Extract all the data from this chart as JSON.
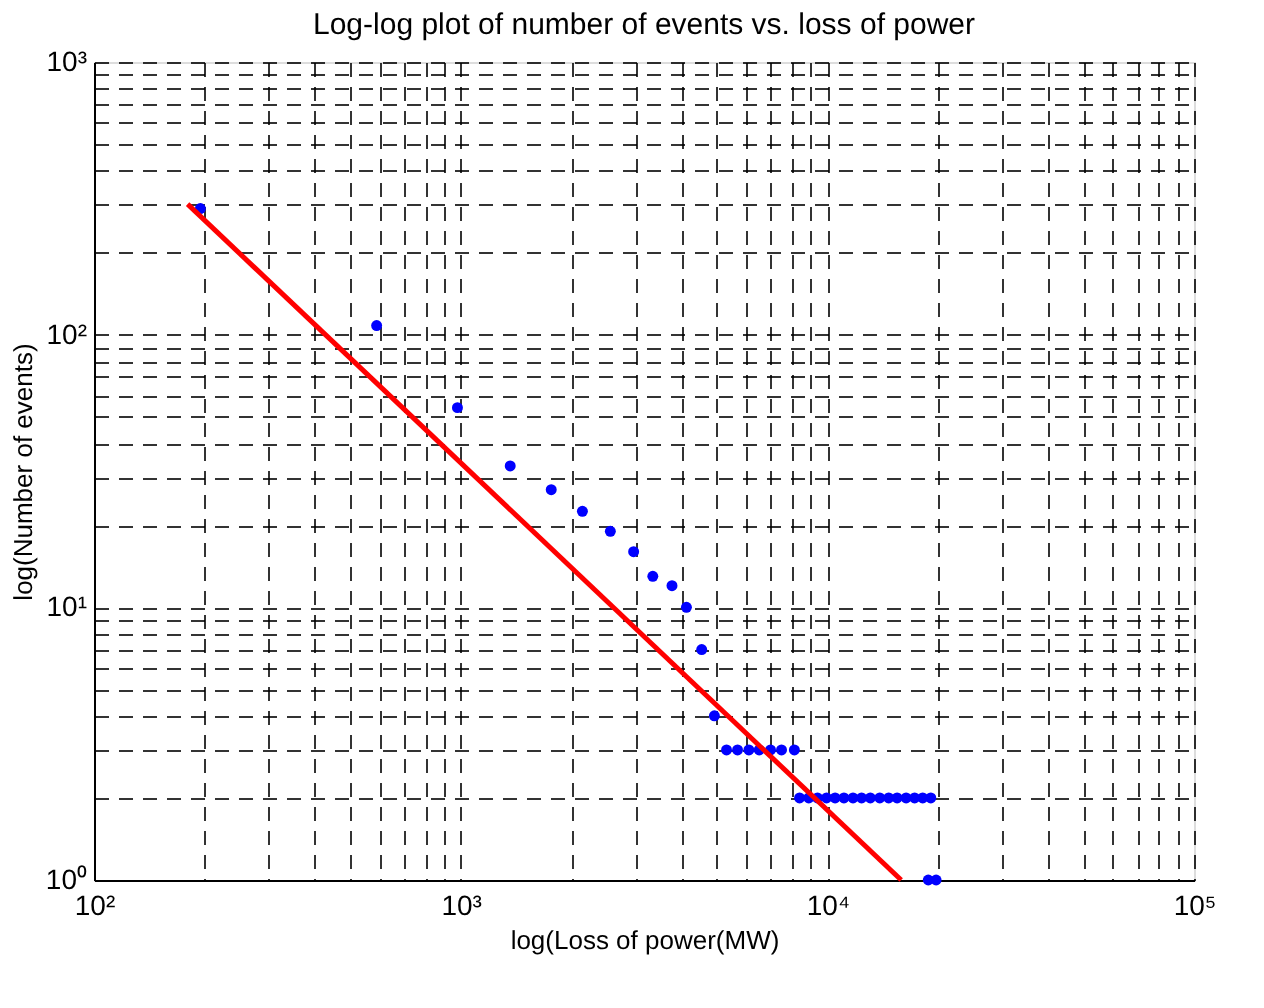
{
  "chart_data": {
    "type": "scatter",
    "title": "Log-log plot of number of events vs. loss of power",
    "xlabel": "log(Loss of power(MW)",
    "ylabel": "log(Number of events)",
    "log": "xy",
    "grid": true,
    "marker": "circle",
    "xlim": [
      100,
      100000
    ],
    "ylim": [
      1,
      1000
    ],
    "xticks": [
      {
        "value": 100,
        "label": "10²"
      },
      {
        "value": 200,
        "label": null
      },
      {
        "value": 300,
        "label": null
      },
      {
        "value": 400,
        "label": null
      },
      {
        "value": 500,
        "label": null
      },
      {
        "value": 600,
        "label": null
      },
      {
        "value": 700,
        "label": null
      },
      {
        "value": 800,
        "label": null
      },
      {
        "value": 900,
        "label": null
      },
      {
        "value": 1000,
        "label": "10³"
      },
      {
        "value": 2000,
        "label": null
      },
      {
        "value": 3000,
        "label": null
      },
      {
        "value": 4000,
        "label": null
      },
      {
        "value": 5000,
        "label": null
      },
      {
        "value": 6000,
        "label": null
      },
      {
        "value": 7000,
        "label": null
      },
      {
        "value": 8000,
        "label": null
      },
      {
        "value": 9000,
        "label": null
      },
      {
        "value": 10000,
        "label": "10⁴"
      },
      {
        "value": 20000,
        "label": null
      },
      {
        "value": 30000,
        "label": null
      },
      {
        "value": 40000,
        "label": null
      },
      {
        "value": 50000,
        "label": null
      },
      {
        "value": 60000,
        "label": null
      },
      {
        "value": 70000,
        "label": null
      },
      {
        "value": 80000,
        "label": null
      },
      {
        "value": 90000,
        "label": null
      },
      {
        "value": 100000,
        "label": "10⁵"
      }
    ],
    "yticks": [
      {
        "value": 1,
        "label": "10⁰"
      },
      {
        "value": 2,
        "label": null
      },
      {
        "value": 3,
        "label": null
      },
      {
        "value": 4,
        "label": null
      },
      {
        "value": 5,
        "label": null
      },
      {
        "value": 6,
        "label": null
      },
      {
        "value": 7,
        "label": null
      },
      {
        "value": 8,
        "label": null
      },
      {
        "value": 9,
        "label": null
      },
      {
        "value": 10,
        "label": "10¹"
      },
      {
        "value": 20,
        "label": null
      },
      {
        "value": 30,
        "label": null
      },
      {
        "value": 40,
        "label": null
      },
      {
        "value": 50,
        "label": null
      },
      {
        "value": 60,
        "label": null
      },
      {
        "value": 70,
        "label": null
      },
      {
        "value": 80,
        "label": null
      },
      {
        "value": 90,
        "label": null
      },
      {
        "value": 100,
        "label": "10²"
      },
      {
        "value": 200,
        "label": null
      },
      {
        "value": 300,
        "label": null
      },
      {
        "value": 400,
        "label": null
      },
      {
        "value": 500,
        "label": null
      },
      {
        "value": 600,
        "label": null
      },
      {
        "value": 700,
        "label": null
      },
      {
        "value": 800,
        "label": null
      },
      {
        "value": 900,
        "label": null
      },
      {
        "value": 1000,
        "label": "10³"
      }
    ],
    "series": [
      {
        "type": "scatter",
        "color": "#0000ff",
        "x": [
          195,
          590,
          980,
          1365,
          1766,
          2148,
          2560,
          2963,
          3342,
          3770,
          4128,
          4543,
          4920,
          5310,
          5690,
          6110,
          6520,
          7000,
          7500,
          8130,
          8400,
          8900,
          9400,
          9950,
          10500,
          11100,
          11750,
          12400,
          13100,
          13900,
          14700,
          15500,
          16400,
          17300,
          18200,
          19150,
          18850,
          19800
        ],
        "values": [
          290,
          108,
          54,
          33,
          27,
          22.5,
          19,
          16,
          13,
          12,
          10,
          7,
          4,
          3,
          3,
          3,
          3,
          3,
          3,
          3,
          2,
          2,
          2,
          2,
          2,
          2,
          2,
          2,
          2,
          2,
          2,
          2,
          2,
          2,
          2,
          2,
          1,
          1
        ]
      },
      {
        "type": "line",
        "color": "#ff0000",
        "marker": "none",
        "x": [
          180,
          15900
        ],
        "values": [
          301,
          1
        ]
      }
    ]
  }
}
